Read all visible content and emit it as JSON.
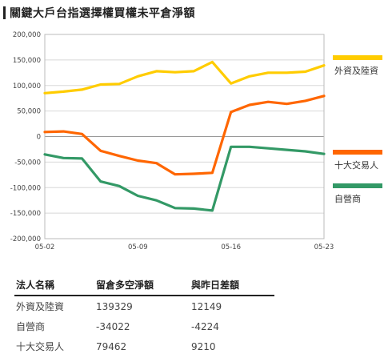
{
  "title": "關鍵大戶台指選擇權買權未平倉淨額",
  "chart_data": {
    "type": "line",
    "y_ticks": [
      "200,000",
      "150,000",
      "100,000",
      "50,000",
      "0",
      "-50,000",
      "-100,000",
      "-150,000",
      "-200,000"
    ],
    "ylim": [
      -200000,
      200000
    ],
    "grid": true,
    "x_tick_labels": [
      "05-02",
      "05-09",
      "05-16",
      "05-23"
    ],
    "x": [
      "05-02",
      "05-03",
      "05-04",
      "05-07",
      "05-08",
      "05-09",
      "05-10",
      "05-11",
      "05-14",
      "05-15",
      "05-16",
      "05-17",
      "05-18",
      "05-21",
      "05-22",
      "05-23"
    ],
    "series": [
      {
        "name": "外資及陸資",
        "color": "#ffcc00",
        "values": [
          85000,
          88000,
          92000,
          102000,
          103000,
          118000,
          128000,
          126000,
          128000,
          146000,
          104000,
          118000,
          125000,
          125000,
          127000,
          139329
        ]
      },
      {
        "name": "十大交易人",
        "color": "#ff6600",
        "values": [
          9000,
          10000,
          5000,
          -28000,
          -38000,
          -47000,
          -52000,
          -74000,
          -73000,
          -71000,
          48000,
          62000,
          68000,
          64000,
          70000,
          79462
        ]
      },
      {
        "name": "自營商",
        "color": "#339966",
        "values": [
          -35000,
          -42000,
          -43000,
          -88000,
          -97000,
          -116000,
          -125000,
          -140000,
          -141000,
          -145000,
          -20000,
          -20000,
          -23000,
          -26000,
          -29000,
          -34022
        ]
      }
    ],
    "legend_placement": "right",
    "legend": [
      "外資及陸資",
      "十大交易人",
      "自營商"
    ]
  },
  "table": {
    "headers": [
      "法人名稱",
      "留倉多空淨額",
      "與昨日差額"
    ],
    "rows": [
      [
        "外資及陸資",
        "139329",
        "12149"
      ],
      [
        "自營商",
        "-34022",
        "-4224"
      ],
      [
        "十大交易人",
        "79462",
        "9210"
      ]
    ]
  }
}
